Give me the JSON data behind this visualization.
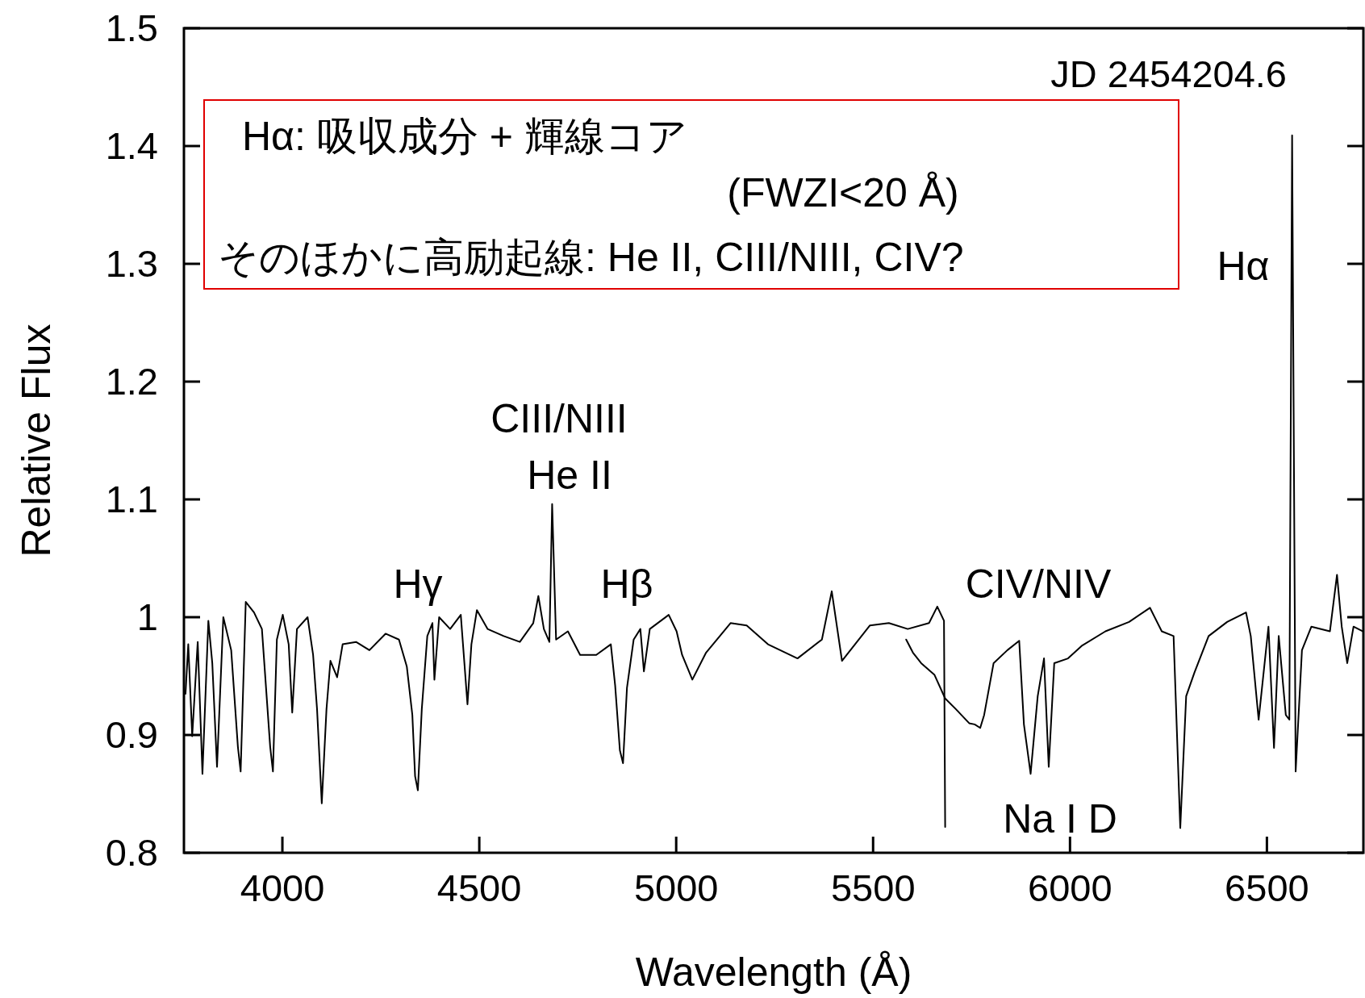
{
  "chart_data": {
    "type": "line",
    "xlabel": "Wavelength (Å)",
    "ylabel": "Relative Flux",
    "xlim": [
      3750,
      6745
    ],
    "ylim": [
      0.8,
      1.5
    ],
    "xticks": [
      4000,
      4500,
      5000,
      5500,
      6000,
      6500
    ],
    "yticks": [
      0.8,
      0.9,
      1,
      1.1,
      1.2,
      1.3,
      1.4,
      1.5
    ],
    "grid": false,
    "marker": "none",
    "line_style": "solid",
    "series": [
      {
        "color": "#000000",
        "x": [
          3754,
          3761,
          3771,
          3785,
          3797,
          3812,
          3822,
          3834,
          3850,
          3870,
          3887,
          3894,
          3907,
          3928,
          3948,
          3969,
          3976,
          3986,
          4001,
          4016,
          4025,
          4037,
          4064,
          4078,
          4088,
          4100,
          4112,
          4122,
          4139,
          4153,
          4187,
          4221,
          4262,
          4296,
          4316,
          4330,
          4337,
          4344,
          4354,
          4368,
          4381,
          4386,
          4398,
          4426,
          4453,
          4470,
          4480,
          4494,
          4521,
          4562,
          4603,
          4637,
          4650,
          4664,
          4678,
          4685,
          4695,
          4725,
          4756,
          4797,
          4834,
          4845,
          4857,
          4865,
          4875,
          4892,
          4909,
          4918,
          4933,
          4981,
          5001,
          5015,
          5041,
          5076,
          5138,
          5179,
          5233,
          5308,
          5370,
          5395,
          5421,
          5492,
          5540,
          5588,
          5642,
          5663,
          5680,
          5683
        ],
        "values": [
          0.935,
          0.977,
          0.899,
          0.979,
          0.867,
          0.997,
          0.961,
          0.873,
          1.0,
          0.972,
          0.89,
          0.869,
          1.013,
          1.004,
          0.99,
          0.89,
          0.869,
          0.981,
          1.002,
          0.977,
          0.919,
          0.99,
          1.0,
          0.968,
          0.922,
          0.842,
          0.922,
          0.963,
          0.949,
          0.977,
          0.979,
          0.972,
          0.986,
          0.981,
          0.958,
          0.917,
          0.865,
          0.853,
          0.922,
          0.984,
          0.995,
          0.947,
          1.0,
          0.99,
          1.002,
          0.926,
          0.977,
          1.006,
          0.99,
          0.984,
          0.979,
          0.995,
          1.018,
          0.99,
          0.979,
          1.096,
          0.981,
          0.988,
          0.968,
          0.968,
          0.977,
          0.942,
          0.887,
          0.876,
          0.94,
          0.981,
          0.99,
          0.954,
          0.99,
          1.002,
          0.988,
          0.968,
          0.947,
          0.97,
          0.995,
          0.993,
          0.977,
          0.965,
          0.981,
          1.022,
          0.963,
          0.993,
          0.995,
          0.99,
          0.995,
          1.009,
          0.997,
          0.822
        ]
      },
      {
        "color": "#000000",
        "x": [
          5584,
          5601,
          5622,
          5656,
          5683,
          5710,
          5744,
          5758,
          5772,
          5782,
          5806,
          5841,
          5871,
          5883,
          5900,
          5918,
          5934,
          5946,
          5960,
          5995,
          6031,
          6090,
          6150,
          6203,
          6233,
          6263,
          6280,
          6295,
          6316,
          6352,
          6399,
          6447,
          6459,
          6479,
          6504,
          6518,
          6530,
          6548,
          6557,
          6564,
          6573,
          6589,
          6613,
          6660,
          6678,
          6690,
          6704,
          6720,
          6744
        ],
        "values": [
          0.981,
          0.97,
          0.961,
          0.951,
          0.931,
          0.922,
          0.91,
          0.909,
          0.906,
          0.917,
          0.961,
          0.972,
          0.98,
          0.909,
          0.867,
          0.933,
          0.965,
          0.873,
          0.961,
          0.965,
          0.976,
          0.988,
          0.996,
          1.008,
          0.988,
          0.984,
          0.821,
          0.933,
          0.953,
          0.984,
          0.996,
          1.004,
          0.984,
          0.913,
          0.992,
          0.889,
          0.984,
          0.917,
          0.913,
          1.409,
          0.869,
          0.972,
          0.992,
          0.988,
          1.036,
          0.992,
          0.961,
          0.992,
          0.988
        ]
      }
    ],
    "annotations": [
      "Hα: 吸収成分 + 輝線コア",
      "(FWZI<20 Å)",
      "そのほかに高励起線: He II, CIII/NIII, CIV?",
      "JD 2454204.6",
      "Hγ",
      "CIII/NIII",
      "He II",
      "Hβ",
      "CIV/NIV",
      "Na I D",
      "Hα"
    ]
  }
}
